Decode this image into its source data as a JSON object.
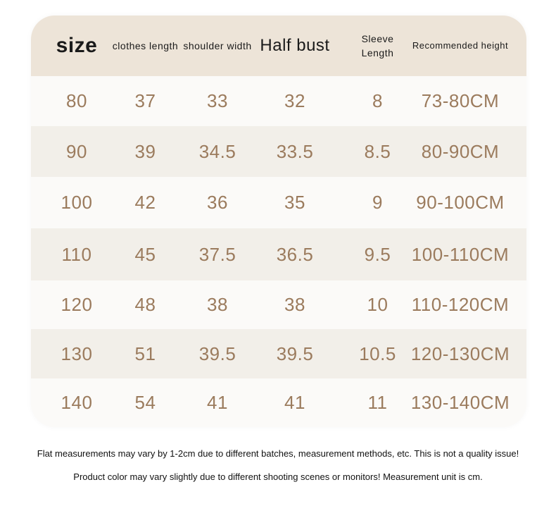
{
  "table": {
    "headers": [
      "size",
      "clothes length",
      "shoulder width",
      "Half bust",
      "Sleeve Length",
      "Recommended height"
    ],
    "rows": [
      [
        "80",
        "37",
        "33",
        "32",
        "8",
        "73-80CM"
      ],
      [
        "90",
        "39",
        "34.5",
        "33.5",
        "8.5",
        "80-90CM"
      ],
      [
        "100",
        "42",
        "36",
        "35",
        "9",
        "90-100CM"
      ],
      [
        "110",
        "45",
        "37.5",
        "36.5",
        "9.5",
        "100-110CM"
      ],
      [
        "120",
        "48",
        "38",
        "38",
        "10",
        "110-120CM"
      ],
      [
        "130",
        "51",
        "39.5",
        "39.5",
        "10.5",
        "120-130CM"
      ],
      [
        "140",
        "54",
        "41",
        "41",
        "11",
        "130-140CM"
      ]
    ]
  },
  "notes": [
    "Flat measurements may vary by 1-2cm due to different batches, measurement methods, etc. This is not a quality issue!",
    "Product color may vary slightly due to different shooting scenes or monitors! Measurement unit is cm."
  ],
  "colors": {
    "header_bg": "#ede4d8",
    "row_light": "#fbfaf8",
    "row_dark": "#f2efe9",
    "value_text": "#9b7b5d",
    "header_text": "#1a1a1a"
  }
}
